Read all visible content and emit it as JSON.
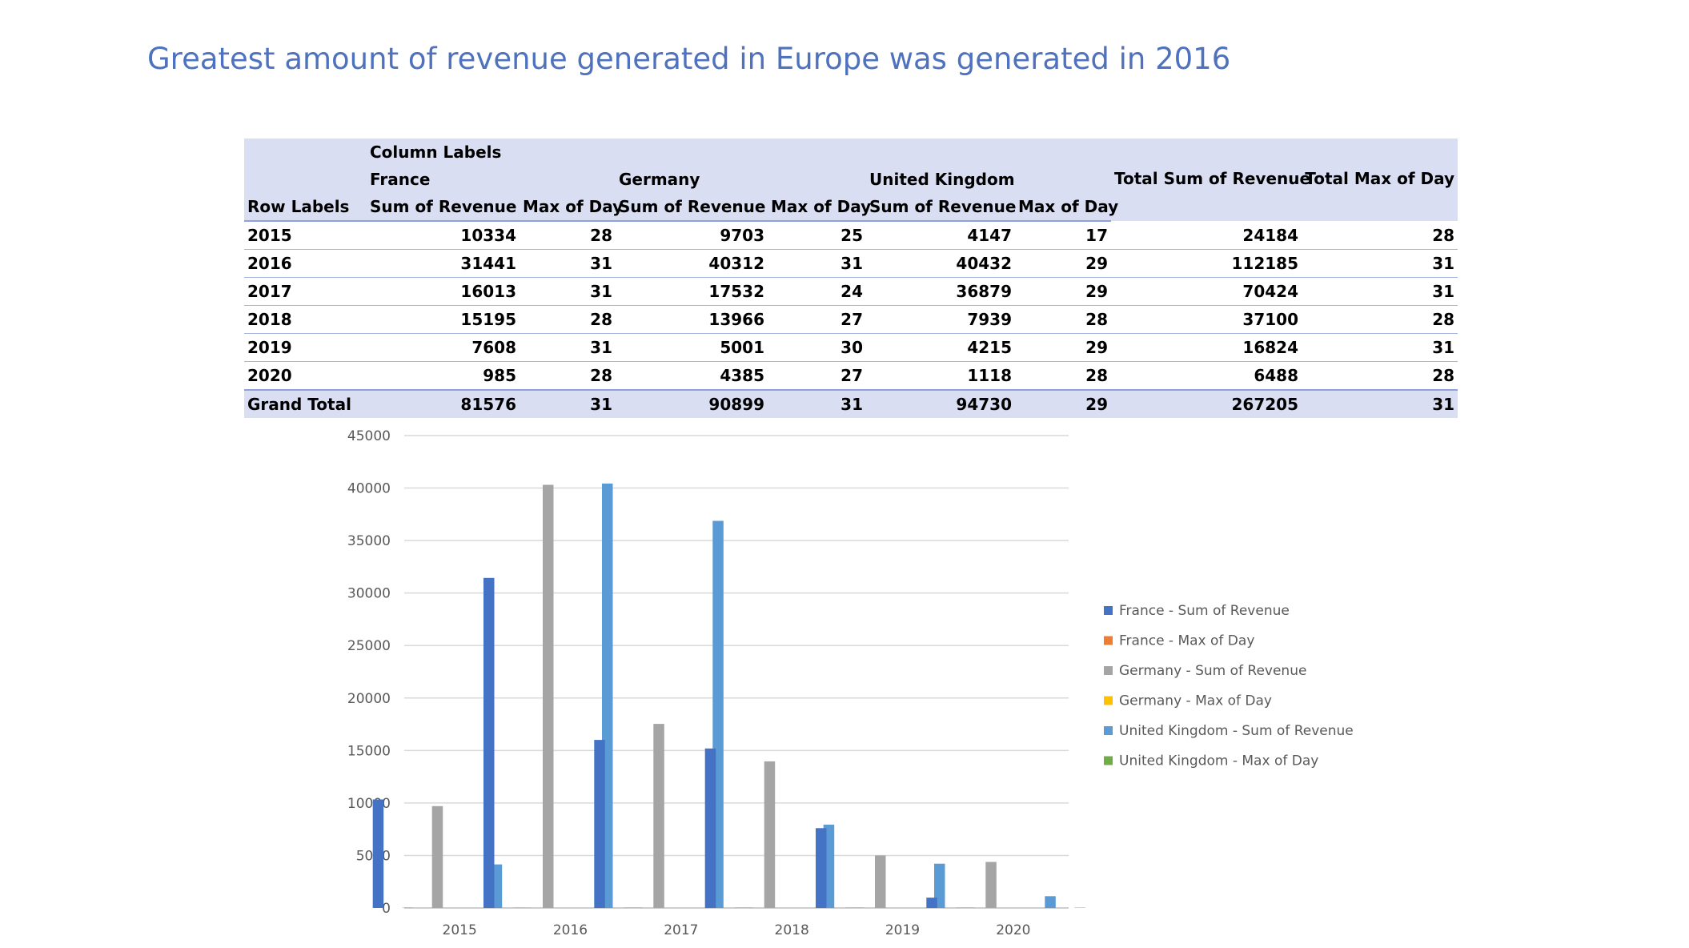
{
  "title": "Greatest amount of revenue generated in Europe was generated in 2016",
  "pivot": {
    "column_labels": "Column Labels",
    "row_labels": "Row Labels",
    "countries": [
      "France",
      "Germany",
      "United Kingdom"
    ],
    "sub_headers": [
      "Sum of Revenue",
      "Max of Day",
      "Sum of Revenue",
      "Max of Day",
      "Sum of Revenue",
      "Max of Day"
    ],
    "total_sum_header": "Total Sum of Revenue",
    "total_max_header": "Total Max of Day",
    "rows": [
      {
        "label": "2015",
        "values": [
          "10334",
          "28",
          "9703",
          "25",
          "4147",
          "17",
          "24184",
          "28"
        ]
      },
      {
        "label": "2016",
        "values": [
          "31441",
          "31",
          "40312",
          "31",
          "40432",
          "29",
          "112185",
          "31"
        ]
      },
      {
        "label": "2017",
        "values": [
          "16013",
          "31",
          "17532",
          "24",
          "36879",
          "29",
          "70424",
          "31"
        ]
      },
      {
        "label": "2018",
        "values": [
          "15195",
          "28",
          "13966",
          "27",
          "7939",
          "28",
          "37100",
          "28"
        ]
      },
      {
        "label": "2019",
        "values": [
          "7608",
          "31",
          "5001",
          "30",
          "4215",
          "29",
          "16824",
          "31"
        ]
      },
      {
        "label": "2020",
        "values": [
          "985",
          "28",
          "4385",
          "27",
          "1118",
          "28",
          "6488",
          "28"
        ]
      }
    ],
    "grand_total": {
      "label": "Grand Total",
      "values": [
        "81576",
        "31",
        "90899",
        "31",
        "94730",
        "29",
        "267205",
        "31"
      ]
    }
  },
  "chart_data": {
    "type": "bar",
    "categories": [
      "2015",
      "2016",
      "2017",
      "2018",
      "2019",
      "2020"
    ],
    "series": [
      {
        "name": "France - Sum of Revenue",
        "color": "#4472C4",
        "values": [
          10334,
          31441,
          16013,
          15195,
          7608,
          985
        ]
      },
      {
        "name": "France - Max of Day",
        "color": "#ED7D31",
        "values": [
          28,
          31,
          31,
          28,
          31,
          28
        ]
      },
      {
        "name": "Germany - Sum of Revenue",
        "color": "#A5A5A5",
        "values": [
          9703,
          40312,
          17532,
          13966,
          5001,
          4385
        ]
      },
      {
        "name": "Germany - Max of Day",
        "color": "#FFC000",
        "values": [
          25,
          31,
          24,
          27,
          30,
          27
        ]
      },
      {
        "name": "United Kingdom - Sum of Revenue",
        "color": "#5B9BD5",
        "values": [
          4147,
          40432,
          36879,
          7939,
          4215,
          1118
        ]
      },
      {
        "name": "United Kingdom - Max of Day",
        "color": "#70AD47",
        "values": [
          17,
          29,
          29,
          28,
          29,
          28
        ]
      }
    ],
    "yticks": [
      "0",
      "5000",
      "10000",
      "15000",
      "20000",
      "25000",
      "30000",
      "35000",
      "40000",
      "45000"
    ],
    "ylim": [
      0,
      45000
    ],
    "grid": true,
    "legend": "right"
  }
}
